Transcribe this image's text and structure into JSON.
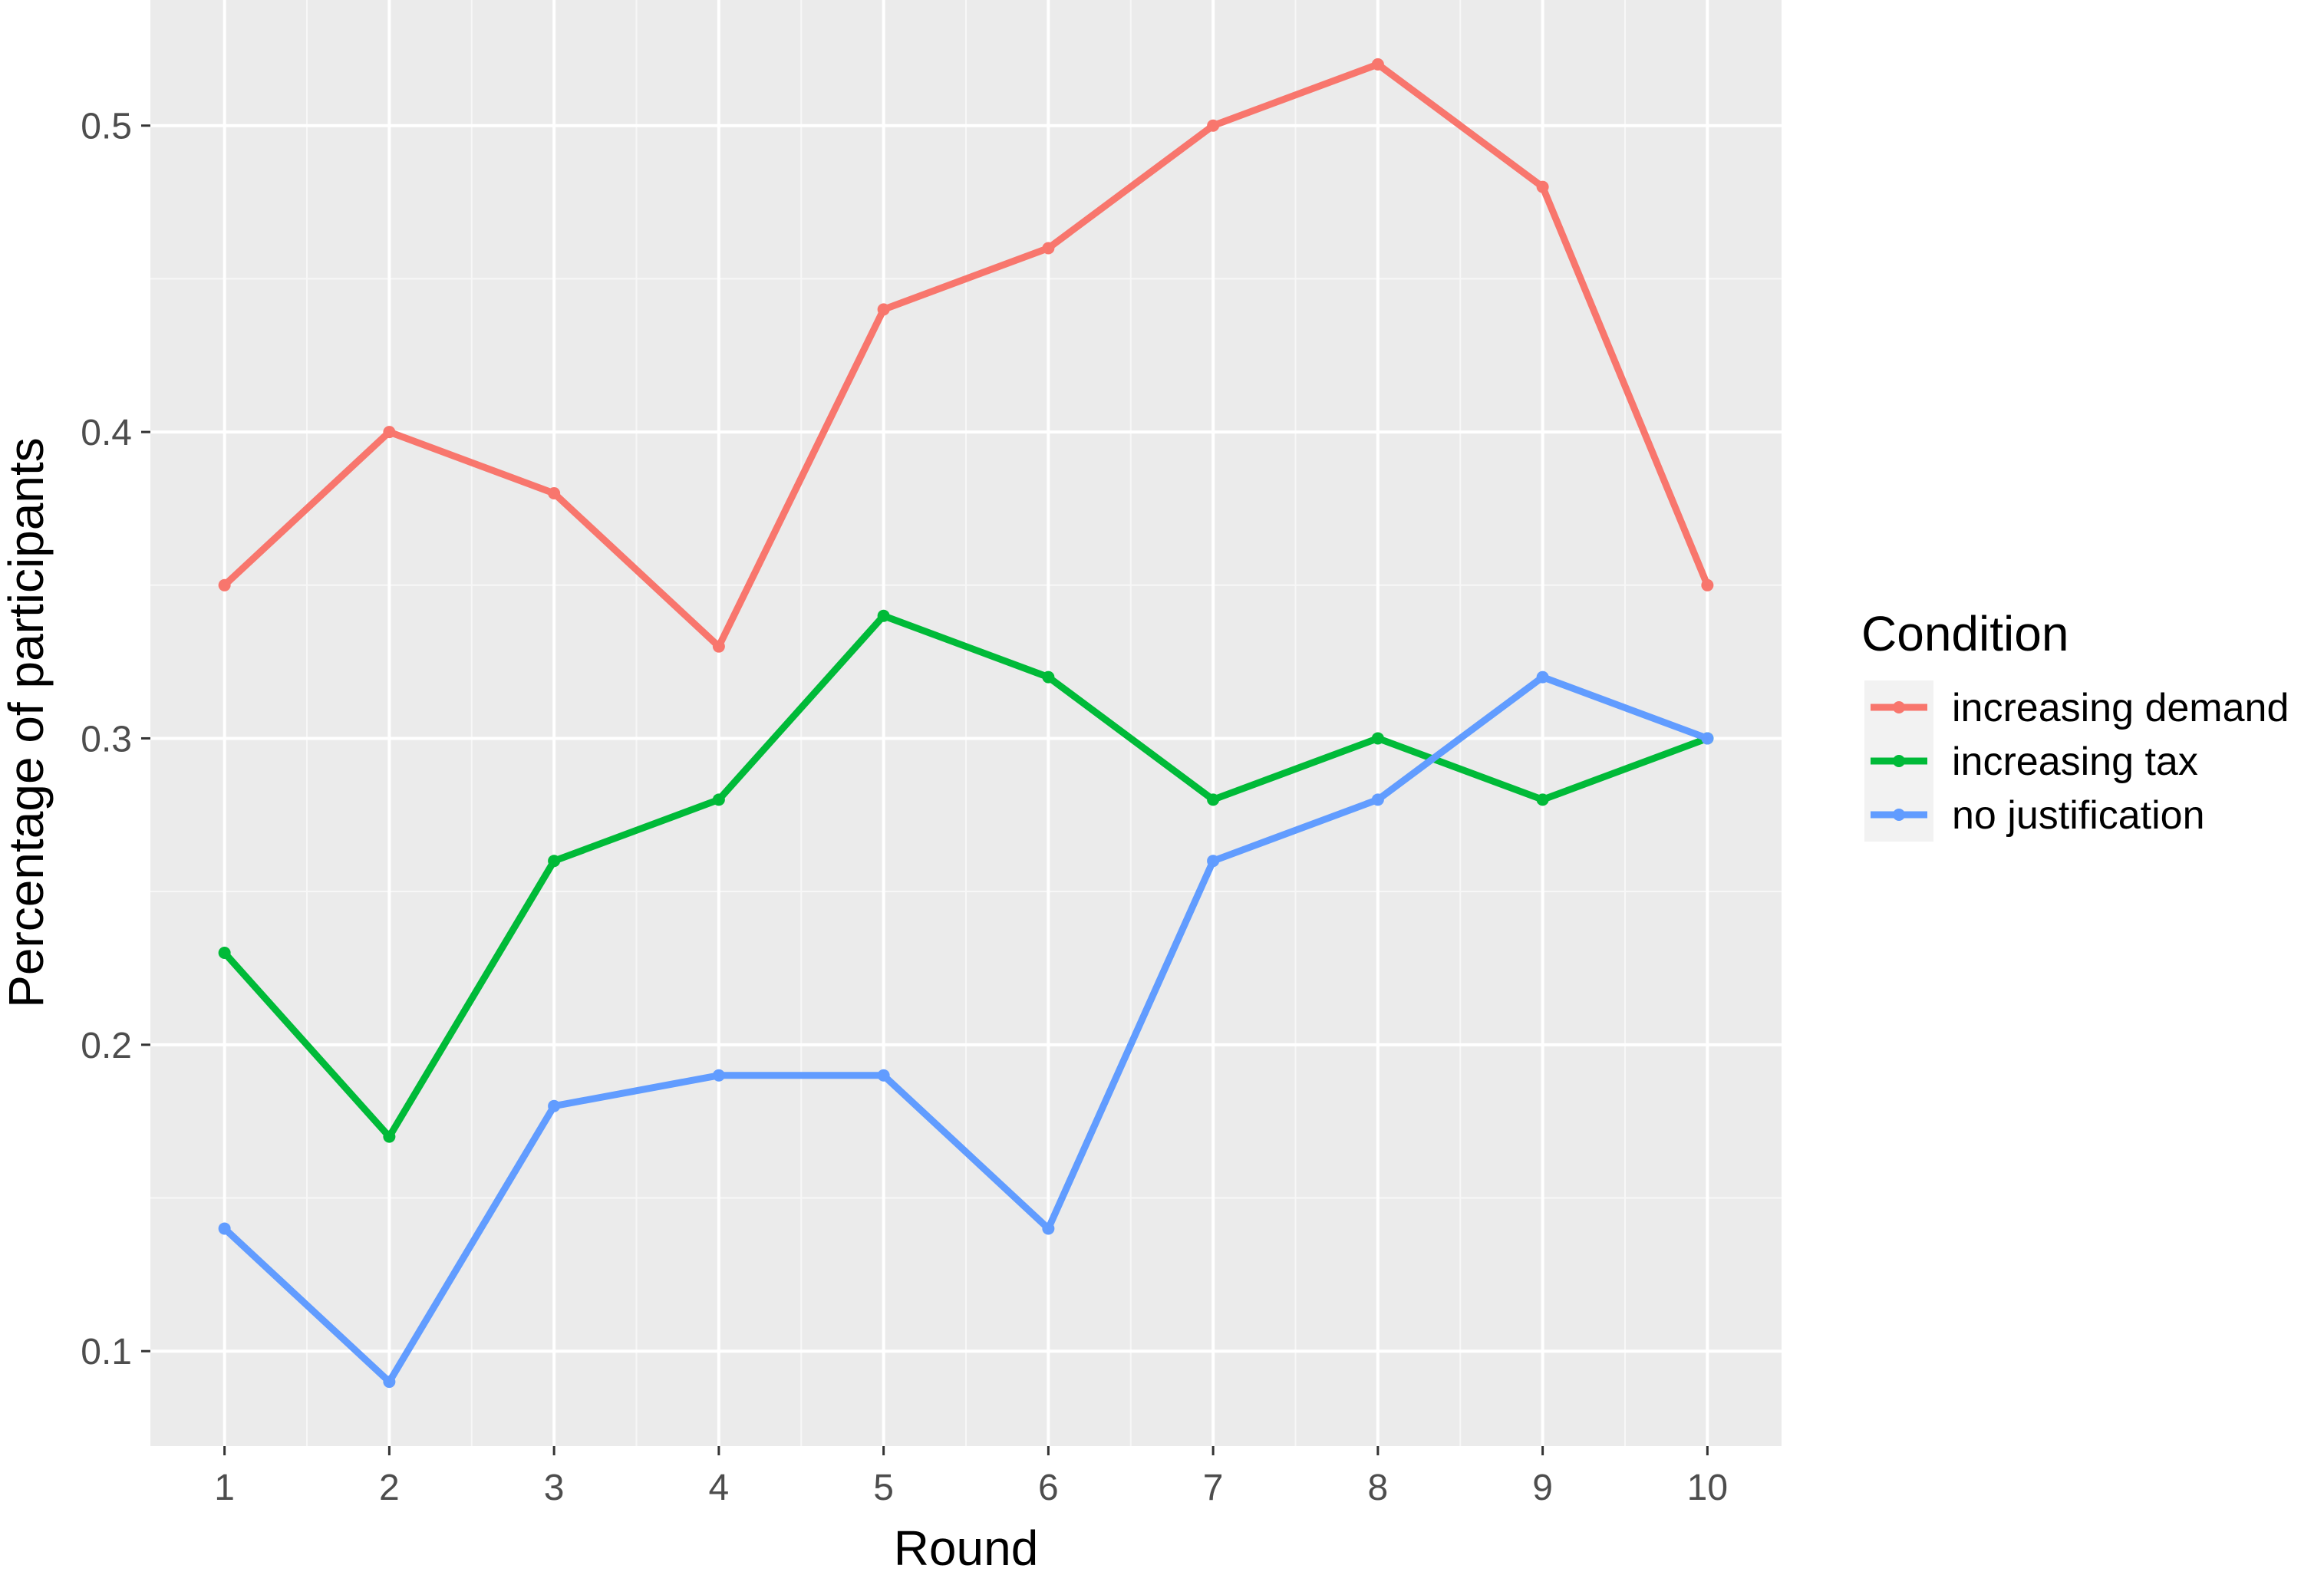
{
  "chart_data": {
    "type": "line",
    "title": "",
    "xlabel": "Round",
    "ylabel": "Percentage of participants",
    "x": [
      1,
      2,
      3,
      4,
      5,
      6,
      7,
      8,
      9,
      10
    ],
    "xticks": [
      "1",
      "2",
      "3",
      "4",
      "5",
      "6",
      "7",
      "8",
      "9",
      "10"
    ],
    "yticks": [
      0.1,
      0.2,
      0.3,
      0.4,
      0.5
    ],
    "ytick_labels": [
      "0.1",
      "0.2",
      "0.3",
      "0.4",
      "0.5"
    ],
    "xlim": [
      0.55,
      10.45
    ],
    "ylim": [
      0.069,
      0.541
    ],
    "grid": true,
    "legend": {
      "title": "Condition",
      "placement": "right"
    },
    "series": [
      {
        "name": "increasing demand",
        "color": "#F8766D",
        "values": [
          0.35,
          0.4,
          0.38,
          0.33,
          0.44,
          0.46,
          0.5,
          0.52,
          0.48,
          0.35
        ]
      },
      {
        "name": "increasing tax",
        "color": "#00BA38",
        "values": [
          0.23,
          0.17,
          0.26,
          0.28,
          0.34,
          0.32,
          0.28,
          0.3,
          0.28,
          0.3
        ]
      },
      {
        "name": "no justification",
        "color": "#619CFF",
        "values": [
          0.14,
          0.09,
          0.18,
          0.19,
          0.19,
          0.14,
          0.26,
          0.28,
          0.32,
          0.3
        ]
      }
    ]
  }
}
